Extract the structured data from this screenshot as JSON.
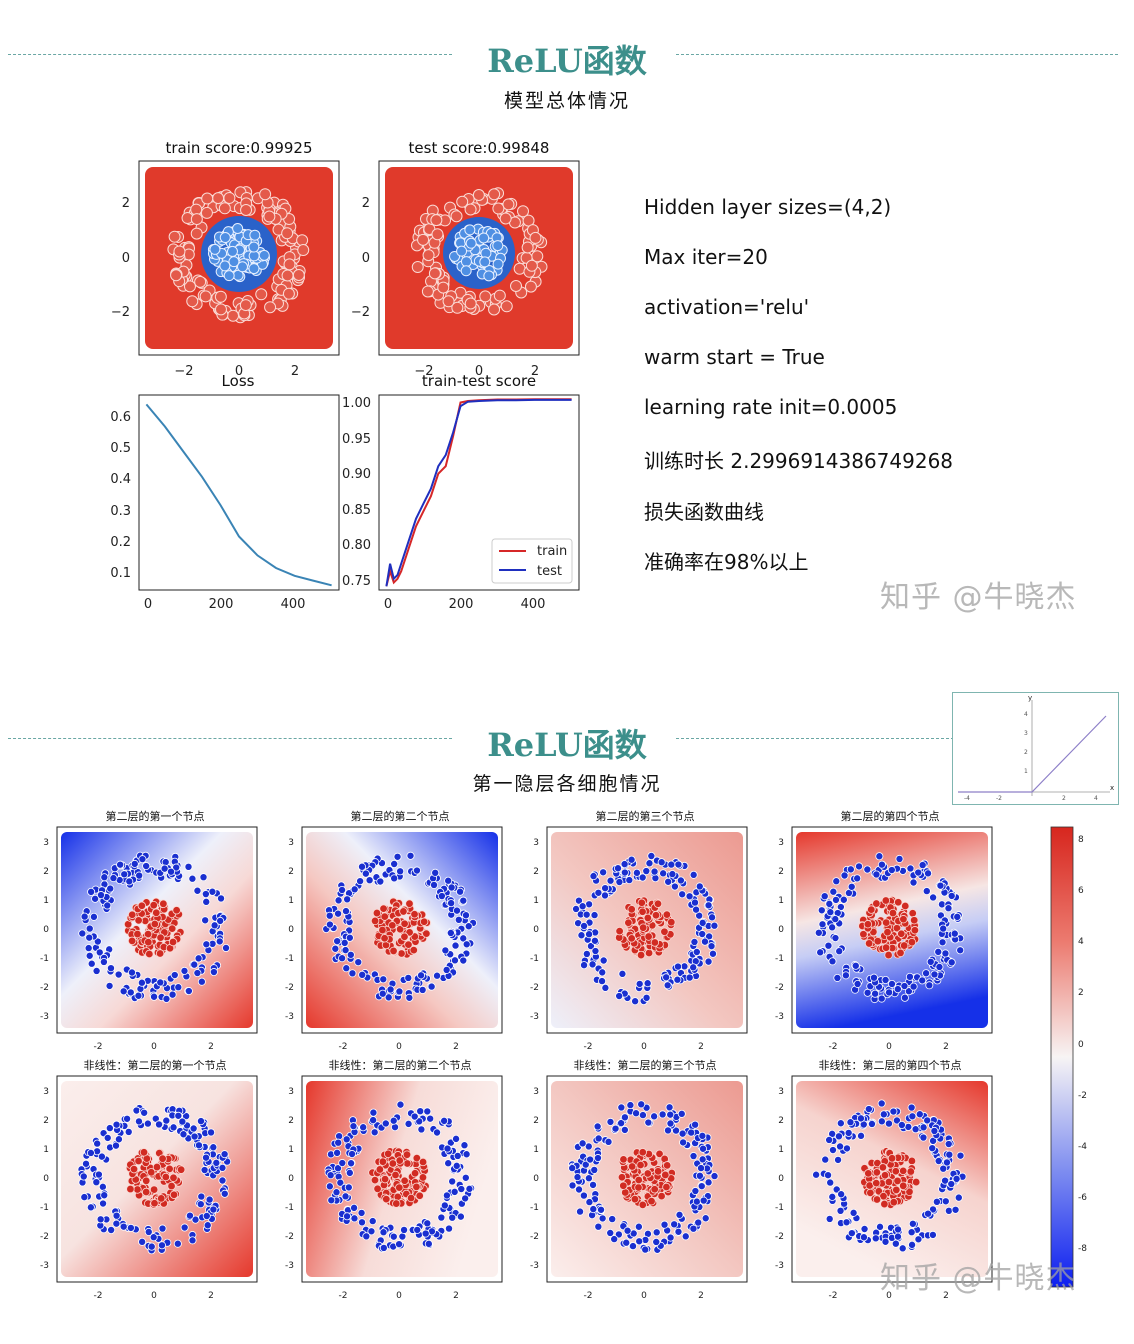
{
  "slide1": {
    "title": "ReLU函数",
    "subtitle": "模型总体情况",
    "info": [
      "Hidden layer sizes=(4,2)",
      "Max iter=20",
      "activation='relu'",
      "warm start = True",
      "learning rate init=0.0005",
      "训练时长 2.2996914386749268",
      "损失函数曲线",
      "准确率在98%以上"
    ],
    "watermark": "知乎 @牛晓杰",
    "plots": {
      "train_title": "train score:0.99925",
      "test_title": "test score:0.99848",
      "loss_title": "Loss",
      "score_title": "train-test score",
      "legend_train": "train",
      "legend_test": "test",
      "decision_xticks": [
        "−2",
        "0",
        "2"
      ],
      "decision_yticks": [
        "2",
        "0",
        "−2"
      ],
      "loss_yticks": [
        "0.6",
        "0.5",
        "0.4",
        "0.3",
        "0.2",
        "0.1"
      ],
      "loss_xticks": [
        "0",
        "200",
        "400"
      ],
      "score_yticks": [
        "1.00",
        "0.95",
        "0.90",
        "0.85",
        "0.80",
        "0.75"
      ],
      "score_xticks": [
        "0",
        "200",
        "400"
      ]
    },
    "colors": {
      "red_region": "#e03a2b",
      "blue_region": "#2a62c9",
      "train_line": "#d62728",
      "test_line": "#1f2fbf",
      "loss_line": "#3a84b5"
    }
  },
  "chart_data": [
    {
      "type": "line",
      "title": "Loss",
      "x": [
        0,
        50,
        100,
        150,
        200,
        250,
        300,
        350,
        400,
        450,
        500
      ],
      "series": [
        {
          "values": [
            0.65,
            0.58,
            0.5,
            0.42,
            0.33,
            0.23,
            0.17,
            0.13,
            0.105,
            0.09,
            0.075
          ]
        }
      ],
      "xlim": [
        -20,
        520
      ],
      "ylim": [
        0.06,
        0.68
      ]
    },
    {
      "type": "line",
      "title": "train-test score",
      "x": [
        0,
        10,
        20,
        30,
        40,
        60,
        80,
        100,
        120,
        140,
        160,
        180,
        200,
        220,
        250,
        300,
        350,
        400,
        450,
        500
      ],
      "series": [
        {
          "name": "train",
          "values": [
            0.75,
            0.77,
            0.755,
            0.76,
            0.77,
            0.8,
            0.83,
            0.85,
            0.87,
            0.9,
            0.91,
            0.95,
            0.995,
            0.997,
            0.998,
            0.999,
            0.999,
            0.9993,
            0.9993,
            0.99925
          ]
        },
        {
          "name": "test",
          "values": [
            0.75,
            0.78,
            0.76,
            0.765,
            0.78,
            0.81,
            0.84,
            0.86,
            0.88,
            0.91,
            0.925,
            0.955,
            0.99,
            0.996,
            0.997,
            0.998,
            0.998,
            0.9985,
            0.9985,
            0.99848
          ]
        }
      ],
      "xlim": [
        -20,
        520
      ],
      "ylim": [
        0.745,
        1.005
      ],
      "legend": "bottom-right"
    },
    {
      "type": "line",
      "x": [
        -4,
        -2,
        0,
        1,
        2,
        3,
        4
      ],
      "series": [
        {
          "values": [
            0,
            0,
            0,
            1,
            2,
            3,
            4
          ]
        }
      ],
      "xlabel": "x",
      "ylabel": "y"
    }
  ],
  "slide2": {
    "title": "ReLU函数",
    "subtitle": "第一隐层各细胞情况",
    "watermark": "知乎 @牛晓杰",
    "row1_titles": [
      "第二层的第一个节点",
      "第二层的第二个节点",
      "第二层的第三个节点",
      "第二层的第四个节点"
    ],
    "row2_titles": [
      "非线性：第二层的第一个节点",
      "非线性：第二层的第二个节点",
      "非线性：第二层的第三个节点",
      "非线性：第二层的第四个节点"
    ],
    "xticks": [
      "-2",
      "0",
      "2"
    ],
    "yticks": [
      "3",
      "2",
      "1",
      "0",
      "-1",
      "-2",
      "-3"
    ],
    "colorbar_ticks": [
      "8",
      "6",
      "4",
      "2",
      "0",
      "-2",
      "-4",
      "-6",
      "-8"
    ],
    "inset_xticks": [
      "-4",
      "-2",
      "2",
      "4"
    ],
    "inset_yticks": [
      "4",
      "3",
      "2",
      "1"
    ],
    "inset_xlabel": "x",
    "inset_ylabel": "y"
  }
}
